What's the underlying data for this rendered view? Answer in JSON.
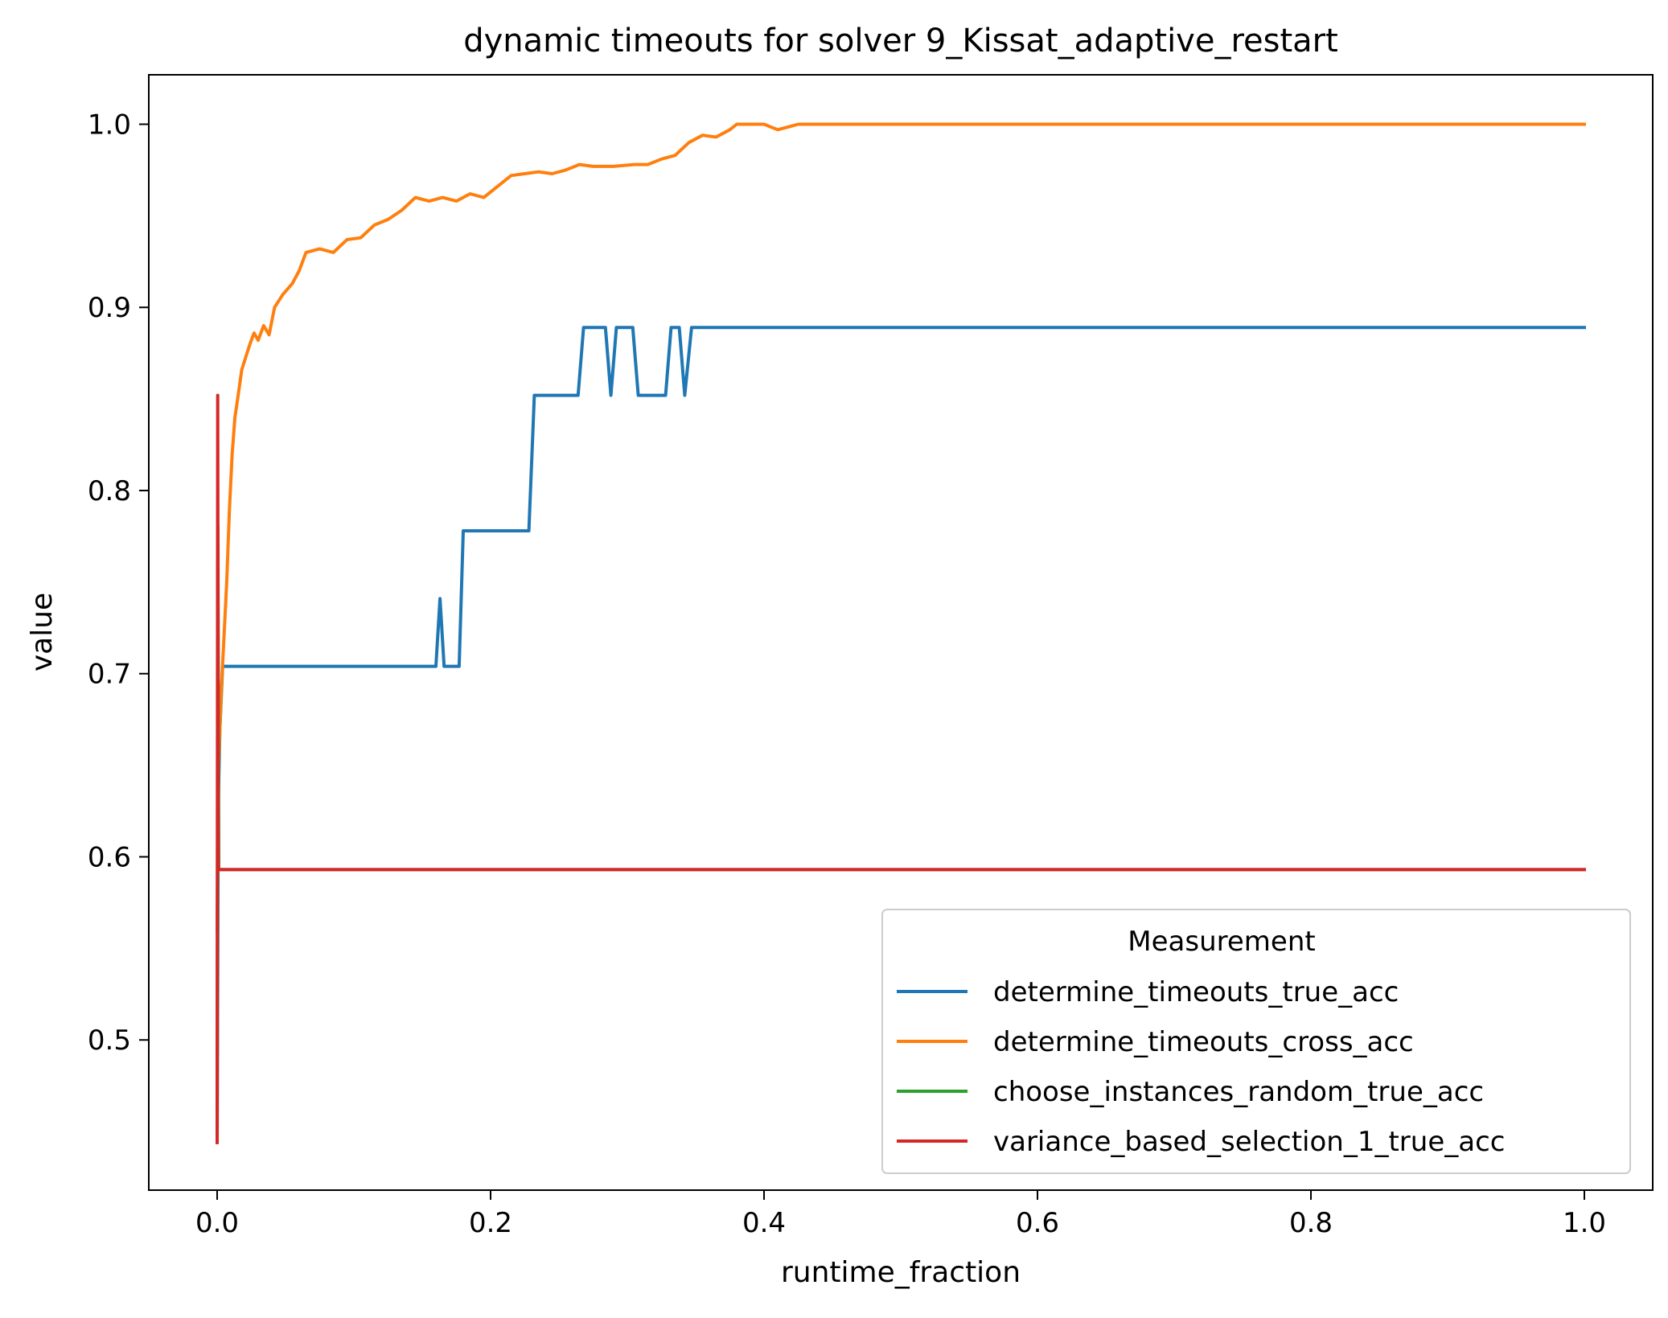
{
  "chart_data": {
    "type": "line",
    "title": "dynamic timeouts for solver 9_Kissat_adaptive_restart",
    "xlabel": "runtime_fraction",
    "ylabel": "value",
    "xlim": [
      -0.05,
      1.05
    ],
    "ylim": [
      0.418,
      1.027
    ],
    "xticks": [
      0.0,
      0.2,
      0.4,
      0.6,
      0.8,
      1.0
    ],
    "xtick_labels": [
      "0.0",
      "0.2",
      "0.4",
      "0.6",
      "0.8",
      "1.0"
    ],
    "yticks": [
      0.5,
      0.6,
      0.7,
      0.8,
      0.9,
      1.0
    ],
    "ytick_labels": [
      "0.5",
      "0.6",
      "0.7",
      "0.8",
      "0.9",
      "1.0"
    ],
    "grid": false,
    "legend": {
      "title": "Measurement",
      "placement": "lower right"
    },
    "series": [
      {
        "name": "determine_timeouts_true_acc",
        "color": "#1f77b4",
        "points": [
          [
            0.0,
            0.444
          ],
          [
            0.0008,
            0.63
          ],
          [
            0.002,
            0.67
          ],
          [
            0.004,
            0.704
          ],
          [
            0.16,
            0.704
          ],
          [
            0.163,
            0.741
          ],
          [
            0.166,
            0.704
          ],
          [
            0.177,
            0.704
          ],
          [
            0.18,
            0.778
          ],
          [
            0.228,
            0.778
          ],
          [
            0.232,
            0.852
          ],
          [
            0.264,
            0.852
          ],
          [
            0.268,
            0.889
          ],
          [
            0.284,
            0.889
          ],
          [
            0.288,
            0.852
          ],
          [
            0.292,
            0.889
          ],
          [
            0.304,
            0.889
          ],
          [
            0.308,
            0.852
          ],
          [
            0.328,
            0.852
          ],
          [
            0.332,
            0.889
          ],
          [
            0.338,
            0.889
          ],
          [
            0.342,
            0.852
          ],
          [
            0.347,
            0.889
          ],
          [
            1.0,
            0.889
          ]
        ]
      },
      {
        "name": "determine_timeouts_cross_acc",
        "color": "#ff7f0e",
        "points": [
          [
            0.0,
            0.56
          ],
          [
            0.001,
            0.65
          ],
          [
            0.003,
            0.69
          ],
          [
            0.005,
            0.72
          ],
          [
            0.007,
            0.75
          ],
          [
            0.009,
            0.79
          ],
          [
            0.011,
            0.82
          ],
          [
            0.013,
            0.84
          ],
          [
            0.015,
            0.85
          ],
          [
            0.018,
            0.866
          ],
          [
            0.021,
            0.873
          ],
          [
            0.024,
            0.88
          ],
          [
            0.027,
            0.886
          ],
          [
            0.03,
            0.882
          ],
          [
            0.034,
            0.89
          ],
          [
            0.038,
            0.885
          ],
          [
            0.042,
            0.9
          ],
          [
            0.048,
            0.907
          ],
          [
            0.055,
            0.913
          ],
          [
            0.06,
            0.92
          ],
          [
            0.065,
            0.93
          ],
          [
            0.075,
            0.932
          ],
          [
            0.085,
            0.93
          ],
          [
            0.095,
            0.937
          ],
          [
            0.105,
            0.938
          ],
          [
            0.115,
            0.945
          ],
          [
            0.125,
            0.948
          ],
          [
            0.135,
            0.953
          ],
          [
            0.145,
            0.96
          ],
          [
            0.155,
            0.958
          ],
          [
            0.165,
            0.96
          ],
          [
            0.175,
            0.958
          ],
          [
            0.185,
            0.962
          ],
          [
            0.195,
            0.96
          ],
          [
            0.205,
            0.966
          ],
          [
            0.215,
            0.972
          ],
          [
            0.225,
            0.973
          ],
          [
            0.235,
            0.974
          ],
          [
            0.245,
            0.973
          ],
          [
            0.255,
            0.975
          ],
          [
            0.265,
            0.978
          ],
          [
            0.275,
            0.977
          ],
          [
            0.29,
            0.977
          ],
          [
            0.305,
            0.978
          ],
          [
            0.315,
            0.978
          ],
          [
            0.325,
            0.981
          ],
          [
            0.335,
            0.983
          ],
          [
            0.345,
            0.99
          ],
          [
            0.355,
            0.994
          ],
          [
            0.365,
            0.993
          ],
          [
            0.375,
            0.997
          ],
          [
            0.38,
            1.0
          ],
          [
            0.4,
            1.0
          ],
          [
            0.41,
            0.997
          ],
          [
            0.42,
            0.999
          ],
          [
            0.425,
            1.0
          ],
          [
            1.0,
            1.0
          ]
        ]
      },
      {
        "name": "choose_instances_random_true_acc",
        "color": "#2ca02c",
        "points": [
          [
            0.0,
            0.444
          ],
          [
            0.0006,
            0.78
          ],
          [
            0.0012,
            0.593
          ],
          [
            1.0,
            0.593
          ]
        ]
      },
      {
        "name": "variance_based_selection_1_true_acc",
        "color": "#d62728",
        "points": [
          [
            0.0,
            0.444
          ],
          [
            0.0004,
            0.852
          ],
          [
            0.0008,
            0.593
          ],
          [
            0.0012,
            0.593
          ],
          [
            1.0,
            0.593
          ]
        ]
      }
    ]
  }
}
